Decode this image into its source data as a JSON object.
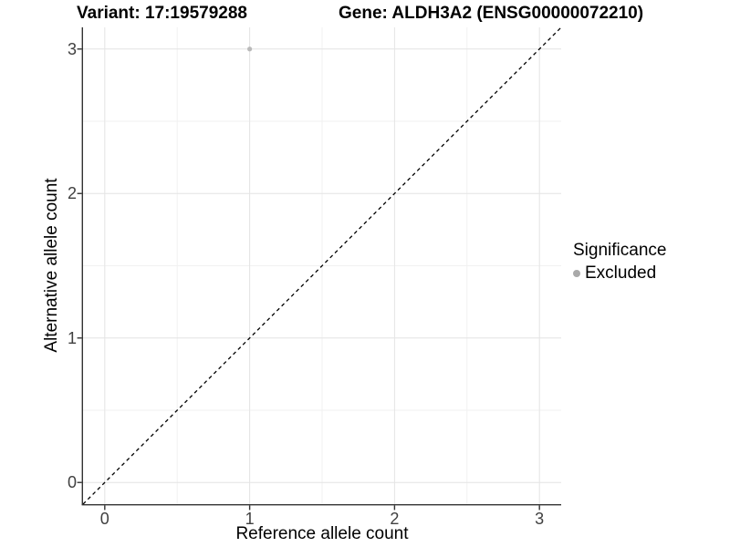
{
  "chart_data": {
    "type": "scatter",
    "title_left": "Variant: 17:19579288",
    "title_right": "Gene: ALDH3A2 (ENSG00000072210)",
    "xlabel": "Reference allele count",
    "ylabel": "Alternative allele count",
    "xlim": [
      -0.15,
      3.15
    ],
    "ylim": [
      -0.15,
      3.15
    ],
    "x_ticks": [
      0,
      1,
      2,
      3
    ],
    "y_ticks": [
      0,
      1,
      2,
      3
    ],
    "x_minor_ticks": [
      0.5,
      1.5,
      2.5
    ],
    "y_minor_ticks": [
      0.5,
      1.5,
      2.5
    ],
    "grid": true,
    "points": [
      {
        "x": 1,
        "y": 3,
        "series": "Excluded"
      }
    ],
    "abline": {
      "slope": 1,
      "intercept": 0,
      "style": "dashed"
    },
    "legend": {
      "title": "Significance",
      "position": "right",
      "entries": [
        {
          "label": "Excluded",
          "color": "#a9a9a9"
        }
      ]
    },
    "colors": {
      "point": "#b9b9b9",
      "legend_point": "#a9a9a9",
      "grid_major": "#e4e4e4",
      "grid_minor": "#f1f1f1",
      "axis_line": "#333333",
      "tick_mark": "#333333",
      "abline": "#000000",
      "background": "#ffffff"
    }
  }
}
